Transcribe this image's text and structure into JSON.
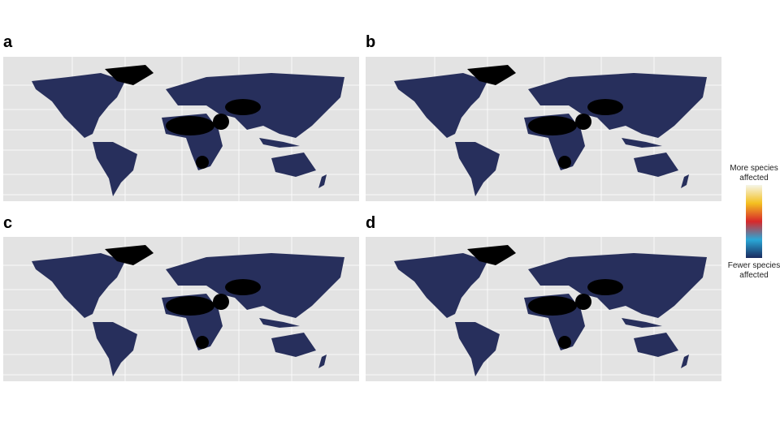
{
  "panels": [
    {
      "label": "a"
    },
    {
      "label": "b"
    },
    {
      "label": "c"
    },
    {
      "label": "d"
    }
  ],
  "legend": {
    "top": [
      "More species",
      "affected"
    ],
    "bottom": [
      "Fewer species",
      "affected"
    ]
  }
}
